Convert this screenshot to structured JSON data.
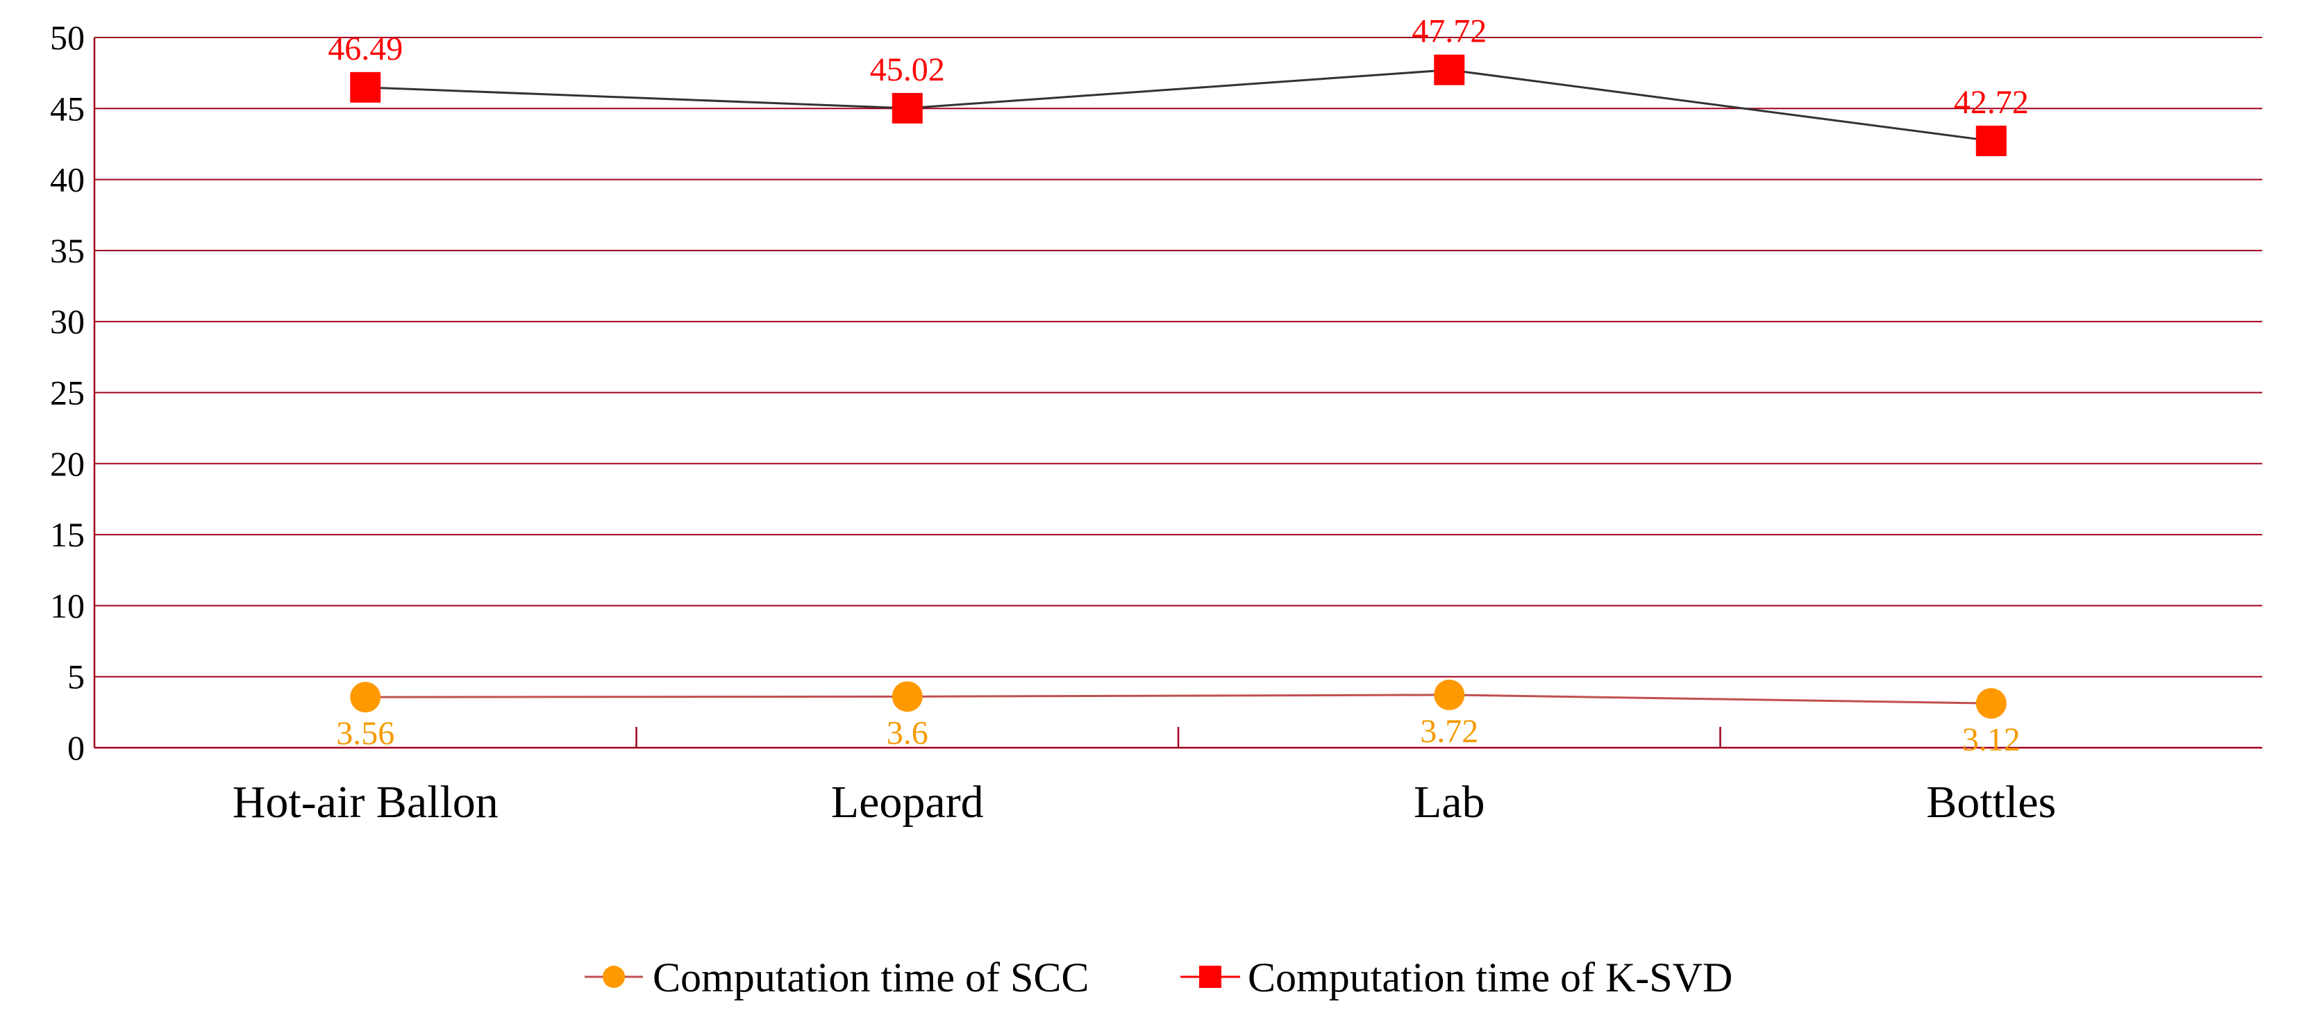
{
  "chart_data": {
    "type": "line",
    "title": "",
    "xlabel": "",
    "ylabel": "",
    "categories": [
      "Hot-air Ballon",
      "Leopard",
      "Lab",
      "Bottles"
    ],
    "ylim": [
      0,
      50
    ],
    "yticks": [
      0,
      5,
      10,
      15,
      20,
      25,
      30,
      35,
      40,
      45,
      50
    ],
    "ytick_labels": [
      "0",
      "5",
      "10",
      "15",
      "20",
      "25",
      "30",
      "35",
      "40",
      "45",
      "50"
    ],
    "grid": true,
    "legend_position": "bottom",
    "series": [
      {
        "name": "Computation time of SCC",
        "values": [
          3.56,
          3.6,
          3.72,
          3.12
        ],
        "labels": [
          "3.56",
          "3.6",
          "3.72",
          "3.12"
        ],
        "marker": "circle",
        "marker_color": "#ff9900",
        "line_color": "#c0504d",
        "label_color": "#f59a00",
        "label_position": "below"
      },
      {
        "name": "Computation time of K-SVD",
        "values": [
          46.49,
          45.02,
          47.72,
          42.72
        ],
        "labels": [
          "46.49",
          "45.02",
          "47.72",
          "42.72"
        ],
        "marker": "square",
        "marker_color": "#ff0000",
        "line_color": "#333333",
        "label_color": "#ff0000",
        "label_position": "above"
      }
    ],
    "gridline_color": "#a0001e",
    "axis_color": "#a0001e"
  }
}
